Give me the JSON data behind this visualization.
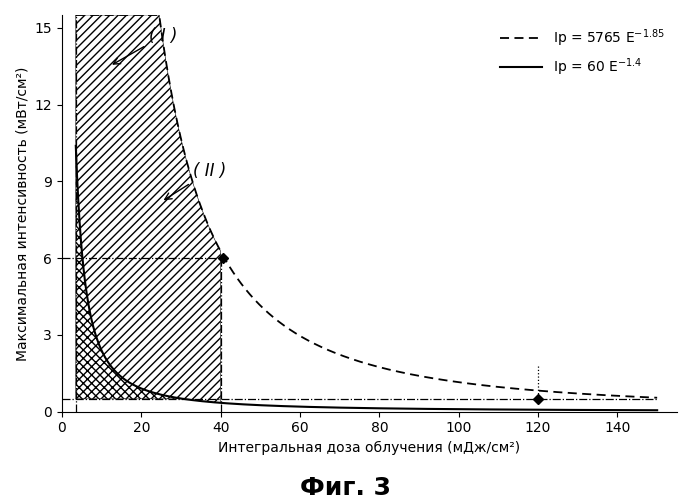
{
  "title": "Фиг. 3",
  "xlabel": "Интегральная доза облучения (мДж/см²)",
  "ylabel": "Максимальная интенсивность (мВт/см²)",
  "xlim": [
    0,
    155
  ],
  "ylim": [
    0,
    15.5
  ],
  "xticks": [
    0,
    20,
    40,
    60,
    80,
    100,
    120,
    140
  ],
  "yticks": [
    0,
    3,
    6,
    9,
    12,
    15
  ],
  "curve1_coeff": 5765,
  "curve1_exp": -1.85,
  "curve2_coeff": 60,
  "curve2_exp": -1.4,
  "E_start": 3.5,
  "E_end": 150,
  "hline_y": 0.5,
  "vline_x": 3.5,
  "region1_end_x": 40,
  "hline6_y": 6.0,
  "diamond1_x": 40.5,
  "diamond1_y": 6.0,
  "diamond2_x": 120,
  "diamond2_y": 0.5,
  "background": "#ffffff"
}
